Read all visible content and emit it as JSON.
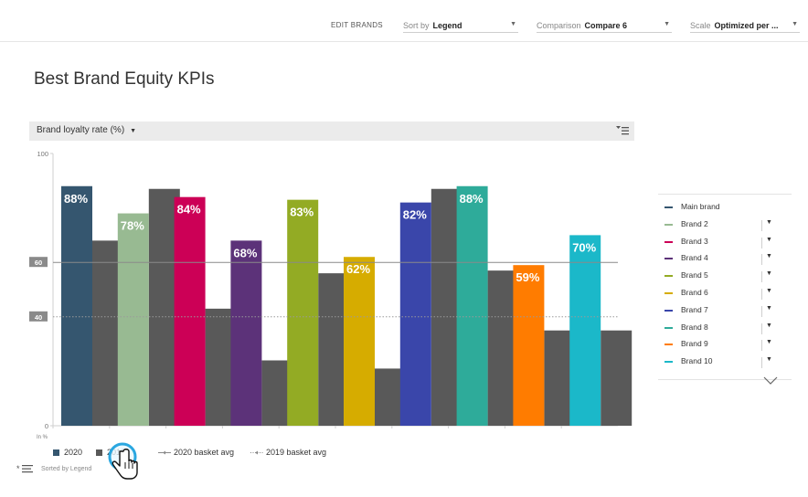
{
  "toolbar": {
    "edit_brands": "EDIT BRANDS",
    "sort_label": "Sort by",
    "sort_value": "Legend",
    "comparison_label": "Comparison",
    "comparison_value": "Compare 6",
    "scale_label": "Scale",
    "scale_value": "Optimized per ..."
  },
  "page_title": "Best Brand Equity KPIs",
  "chart_header": {
    "metric": "Brand loyalty rate (%)",
    "filter_icon": "filter-sort-icon"
  },
  "chart_data": {
    "type": "bar",
    "categories": [
      "Main brand",
      "Brand 2",
      "Brand 3",
      "Brand 4",
      "Brand 5",
      "Brand 6",
      "Brand 7",
      "Brand 8",
      "Brand 9",
      "Brand 10"
    ],
    "series": [
      {
        "name": "2020",
        "values": [
          88,
          78,
          84,
          68,
          83,
          62,
          82,
          88,
          59,
          70
        ]
      },
      {
        "name": "2019",
        "values": [
          68,
          87,
          43,
          24,
          56,
          21,
          87,
          57,
          35,
          35
        ]
      }
    ],
    "data_labels": [
      "88%",
      "78%",
      "84%",
      "68%",
      "83%",
      "62%",
      "82%",
      "88%",
      "59%",
      "70%"
    ],
    "colors_2020": [
      "#35566f",
      "#98ba92",
      "#cc0056",
      "#5c3279",
      "#93ab24",
      "#d6ac00",
      "#3a46aa",
      "#2eab9a",
      "#ff7c00",
      "#1bb8c9"
    ],
    "color_2019": "#595959",
    "reference_lines": [
      {
        "label": "60",
        "value": 60,
        "style": "solid",
        "series": "2020 basket avg"
      },
      {
        "label": "40",
        "value": 40,
        "style": "dotted",
        "series": "2019 basket avg"
      }
    ],
    "y_ticks": [
      "0",
      "100"
    ],
    "ylim": [
      0,
      100
    ],
    "unit": "In %"
  },
  "legend": {
    "items": [
      {
        "label": "Main brand",
        "color": "#35566f"
      },
      {
        "label": "Brand 2",
        "color": "#98ba92"
      },
      {
        "label": "Brand 3",
        "color": "#cc0056"
      },
      {
        "label": "Brand 4",
        "color": "#5c3279"
      },
      {
        "label": "Brand 5",
        "color": "#93ab24"
      },
      {
        "label": "Brand 6",
        "color": "#d6ac00"
      },
      {
        "label": "Brand 7",
        "color": "#3a46aa"
      },
      {
        "label": "Brand 8",
        "color": "#2eab9a"
      },
      {
        "label": "Brand 9",
        "color": "#ff7c00"
      },
      {
        "label": "Brand 10",
        "color": "#1bb8c9"
      }
    ]
  },
  "bottom_legend": {
    "y2020": "2020",
    "y2019": "2019",
    "avg2020": "2020 basket avg",
    "avg2019": "2019 basket avg"
  },
  "sorted_text": "Sorted by Legend"
}
